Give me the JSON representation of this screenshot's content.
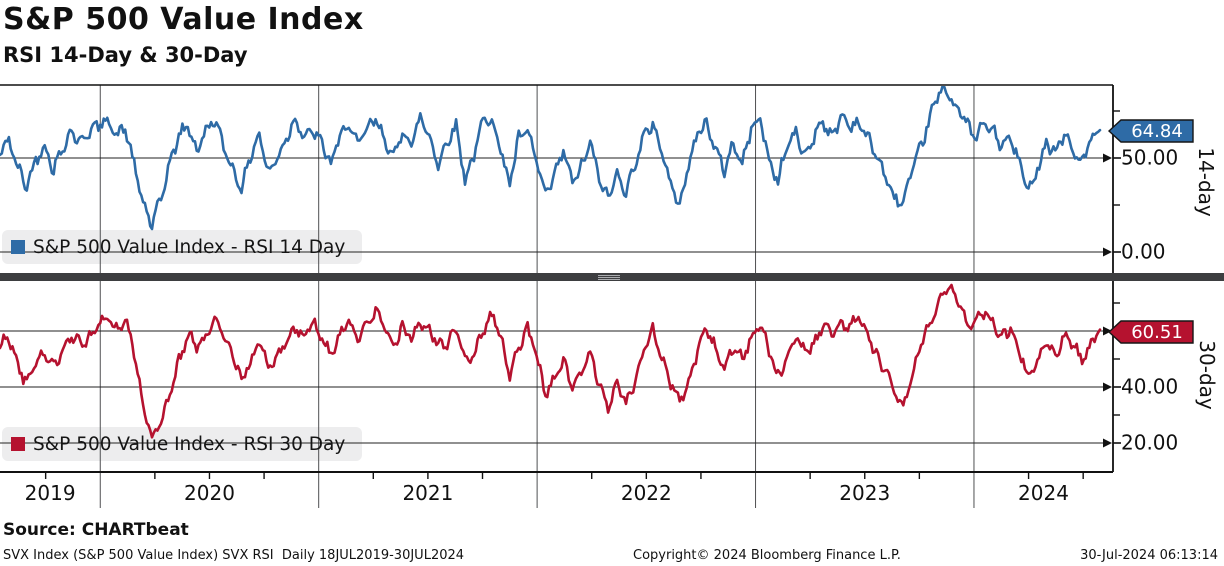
{
  "header": {
    "title": "S&P 500 Value Index",
    "subtitle": "RSI 14-Day & 30-Day"
  },
  "footer": {
    "source": "Source: CHARTbeat",
    "description": "SVX Index (S&P 500 Value Index) SVX RSI  Daily 18JUL2019-30JUL2024",
    "copyright": "Copyright© 2024 Bloomberg Finance L.P.",
    "timestamp": "30-Jul-2024 06:13:14"
  },
  "chart_data": {
    "type": "line",
    "title": "S&P 500 Value Index",
    "subtitle": "RSI 14-Day & 30-Day",
    "x_start_label": "18JUL2019",
    "x_end_label": "30JUL2024",
    "x_start_year_frac": 2019.541,
    "x_end_year_frac": 2024.577,
    "x_tick_years": [
      "2019",
      "2020",
      "2021",
      "2022",
      "2023",
      "2024"
    ],
    "grid": true,
    "legend_position": "inside-bottom-left",
    "panels": [
      {
        "name": "14-day",
        "legend": "S&P 500 Value Index - RSI 14 Day",
        "color": "#2e6ba6",
        "last_value": 64.84,
        "last_label": "64.84",
        "ylim": [
          -8.5,
          88.8
        ],
        "gridlines": [
          {
            "value": 50,
            "label": "50.00"
          },
          {
            "value": 0,
            "label": "0.00"
          }
        ],
        "minor_ticks": [
          75,
          25
        ],
        "values": [
          52,
          61,
          45,
          33,
          50,
          58,
          42,
          55,
          66,
          58,
          63,
          68,
          72,
          60,
          66,
          48,
          25,
          13,
          30,
          48,
          60,
          68,
          55,
          63,
          70,
          58,
          44,
          32,
          52,
          64,
          40,
          50,
          62,
          70,
          60,
          66,
          58,
          45,
          62,
          70,
          55,
          65,
          72,
          60,
          48,
          66,
          58,
          70,
          62,
          48,
          58,
          66,
          40,
          52,
          68,
          72,
          55,
          35,
          60,
          66,
          48,
          28,
          42,
          55,
          35,
          45,
          60,
          38,
          27,
          44,
          32,
          45,
          62,
          70,
          52,
          35,
          28,
          45,
          62,
          70,
          55,
          42,
          58,
          48,
          65,
          70,
          50,
          38,
          55,
          64,
          52,
          60,
          70,
          62,
          72,
          66,
          70,
          62,
          50,
          40,
          30,
          25,
          42,
          58,
          72,
          83,
          86,
          78,
          68,
          60,
          70,
          64,
          55,
          62,
          48,
          30,
          45,
          60,
          52,
          62,
          55,
          48,
          58,
          64.84
        ]
      },
      {
        "name": "30-day",
        "legend": "S&P 500 Value Index - RSI 30 Day",
        "color": "#b5122f",
        "last_value": 60.51,
        "last_label": "60.51",
        "ylim": [
          10,
          77.5
        ],
        "gridlines": [
          {
            "value": 60,
            "label": ""
          },
          {
            "value": 40,
            "label": "40.00"
          },
          {
            "value": 20,
            "label": "20.00"
          }
        ],
        "minor_ticks": [
          70,
          50,
          30
        ],
        "values": [
          55,
          57,
          48,
          42,
          47,
          52,
          48,
          52,
          58,
          56,
          58,
          62,
          65,
          62,
          63,
          52,
          35,
          22,
          27,
          38,
          50,
          58,
          54,
          58,
          63,
          58,
          52,
          43,
          48,
          56,
          48,
          50,
          56,
          62,
          58,
          62,
          58,
          52,
          58,
          64,
          58,
          62,
          66,
          62,
          55,
          60,
          58,
          64,
          60,
          54,
          57,
          61,
          49,
          52,
          61,
          65,
          58,
          45,
          54,
          60,
          52,
          38,
          42,
          50,
          41,
          44,
          52,
          42,
          33,
          40,
          35,
          42,
          53,
          61,
          52,
          41,
          34,
          42,
          53,
          60,
          54,
          47,
          54,
          50,
          58,
          62,
          52,
          44,
          51,
          57,
          52,
          56,
          62,
          58,
          64,
          62,
          64,
          60,
          52,
          45,
          38,
          34,
          44,
          54,
          64,
          72,
          76,
          72,
          64,
          62,
          66,
          64,
          58,
          60,
          54,
          44,
          48,
          55,
          52,
          58,
          54,
          50,
          56,
          60.51
        ]
      }
    ]
  }
}
